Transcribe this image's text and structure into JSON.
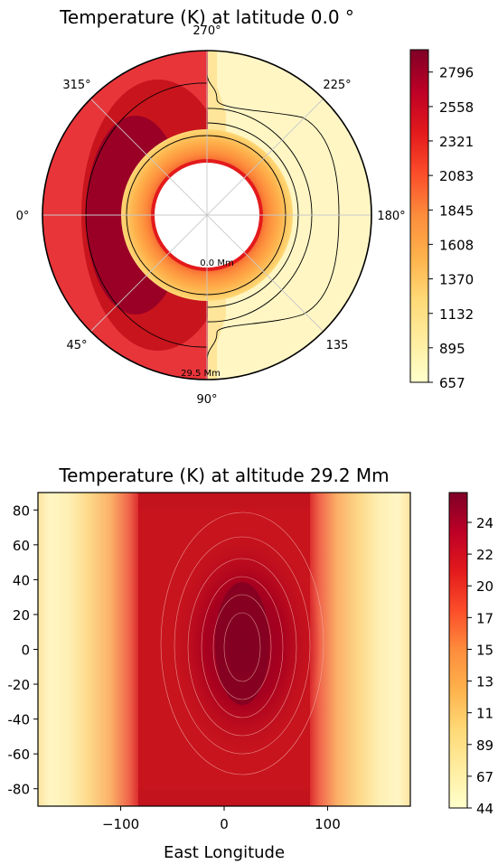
{
  "chart_data": [
    {
      "type": "polar-heatmap",
      "title": "Temperature (K) at latitude 0.0 °",
      "angular_ticks": [
        "0°",
        "45°",
        "90°",
        "135",
        "180°",
        "225°",
        "270°",
        "315°"
      ],
      "radial_labels": [
        "0.0 Mm",
        "29.5 Mm"
      ],
      "colorbar": {
        "ticks": [
          657,
          895,
          1132,
          1370,
          1608,
          1845,
          2083,
          2321,
          2558,
          2796
        ],
        "tick_labels": [
          "657",
          "895",
          "1132",
          "1370",
          "1608",
          "1845",
          "2083",
          "2321",
          "2558",
          "2796"
        ],
        "range": [
          657,
          2950
        ]
      },
      "colormap": [
        "#ffffcc",
        "#ffeda0",
        "#fed976",
        "#feb24c",
        "#fd8d3c",
        "#fc4e2a",
        "#e31a1c",
        "#bd0026",
        "#800026"
      ]
    },
    {
      "type": "heatmap",
      "title": "Temperature (K) at altitude 29.2 Mm",
      "xlabel": "East Longitude",
      "ylabel": "",
      "xlim": [
        -180,
        180
      ],
      "ylim": [
        -90,
        90
      ],
      "x_ticks": [
        -100,
        0,
        100
      ],
      "x_tick_labels": [
        "−100",
        "0",
        "100"
      ],
      "y_ticks": [
        80,
        60,
        40,
        20,
        0,
        -20,
        -40,
        -60,
        -80
      ],
      "y_tick_labels": [
        "80",
        "60",
        "40",
        "20",
        "0",
        "-20",
        "-40",
        "-60",
        "-80"
      ],
      "dayside_lon_range": [
        -83,
        83
      ],
      "hotspot_center": [
        18,
        5
      ],
      "colorbar": {
        "tick_labels": [
          "24",
          "22",
          "20",
          "17",
          "15",
          "13",
          "11",
          "89",
          "67",
          "44"
        ]
      }
    }
  ]
}
